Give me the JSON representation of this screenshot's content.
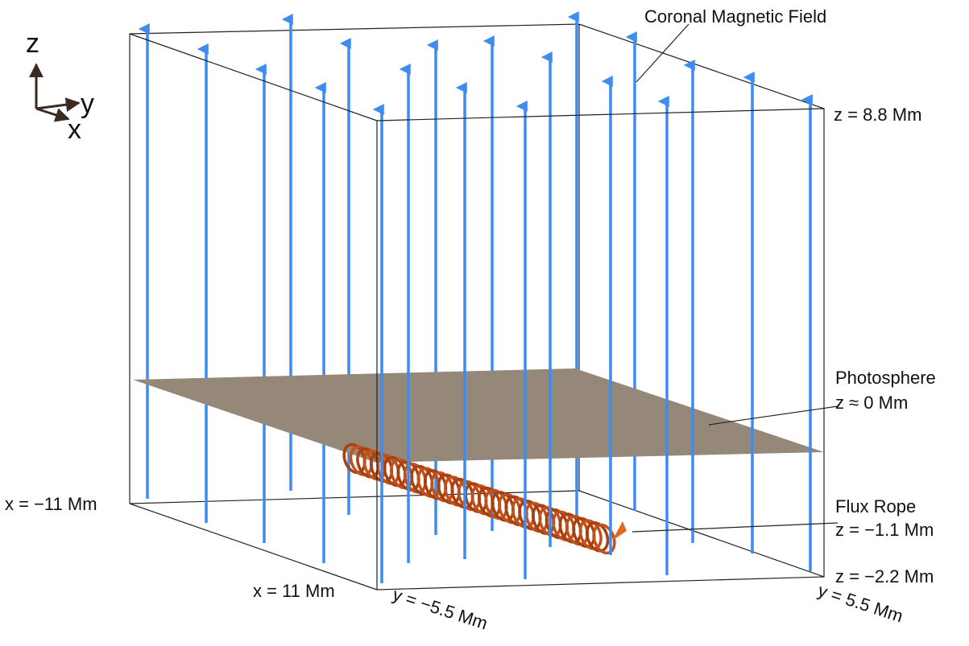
{
  "triad": {
    "z": "z",
    "y": "y",
    "x": "x"
  },
  "annotations": {
    "coronal_field": "Coronal Magnetic Field",
    "z_top": "z = 8.8 Mm",
    "photosphere": "Photosphere",
    "photosphere_z": "z ≈ 0 Mm",
    "flux_rope": "Flux Rope",
    "flux_rope_z": "z = −1.1 Mm",
    "z_bottom": "z = −2.2 Mm",
    "x_back": "x = −11 Mm",
    "x_front": "x = 11 Mm",
    "y_left": "y = −5.5 Mm",
    "y_right": "y = 5.5 Mm"
  }
}
